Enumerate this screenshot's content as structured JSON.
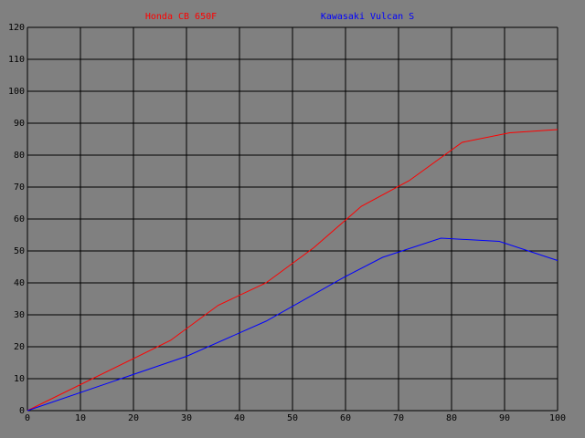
{
  "chart_data": {
    "type": "line",
    "series": [
      {
        "name": "Honda CB 650F",
        "color": "#ff0000",
        "x": [
          0,
          27,
          36,
          45,
          54,
          63,
          72,
          82,
          91,
          100
        ],
        "values": [
          0,
          22,
          33,
          40,
          51,
          64,
          72,
          84,
          87,
          88
        ]
      },
      {
        "name": "Kawasaki Vulcan S",
        "color": "#0000ff",
        "x": [
          0,
          30,
          45,
          60,
          67,
          78,
          89,
          100
        ],
        "values": [
          0,
          17,
          28,
          42,
          48,
          54,
          53,
          47
        ]
      }
    ],
    "xlim": [
      0,
      100
    ],
    "xticks": [
      0,
      10,
      20,
      30,
      40,
      50,
      60,
      70,
      80,
      90,
      100
    ],
    "ylim": [
      0,
      120
    ],
    "yticks": [
      0,
      10,
      20,
      30,
      40,
      50,
      60,
      70,
      80,
      90,
      100,
      110,
      120
    ],
    "grid": true
  }
}
